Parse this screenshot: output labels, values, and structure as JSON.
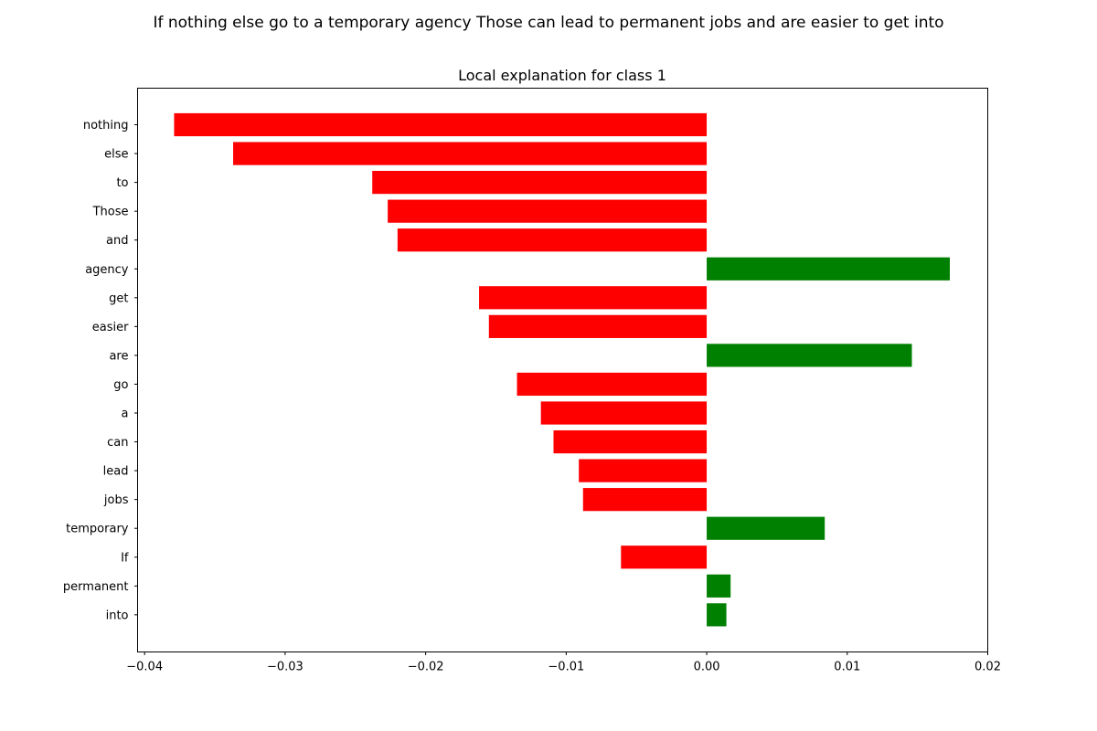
{
  "suptitle": "If nothing else go to a temporary agency Those can lead to permanent jobs and are easier to get into",
  "chart_data": {
    "type": "bar",
    "orientation": "horizontal",
    "title": "Local explanation for class 1",
    "xlabel": "",
    "ylabel": "",
    "xlim": [
      -0.0405,
      0.02
    ],
    "xticks": [
      -0.04,
      -0.03,
      -0.02,
      -0.01,
      0.0,
      0.01,
      0.02
    ],
    "xtick_labels": [
      "−0.04",
      "−0.03",
      "−0.02",
      "−0.01",
      "0.00",
      "0.01",
      "0.02"
    ],
    "grid": false,
    "colors": {
      "positive": "#008000",
      "negative": "#ff0000"
    },
    "categories": [
      "nothing",
      "else",
      "to",
      "Those",
      "and",
      "agency",
      "get",
      "easier",
      "are",
      "go",
      "a",
      "can",
      "lead",
      "jobs",
      "temporary",
      "If",
      "permanent",
      "into"
    ],
    "values": [
      -0.0379,
      -0.0337,
      -0.0238,
      -0.0227,
      -0.022,
      0.0173,
      -0.0162,
      -0.0155,
      0.0146,
      -0.0135,
      -0.0118,
      -0.0109,
      -0.0091,
      -0.0088,
      0.0084,
      -0.0061,
      0.0017,
      0.0014
    ]
  }
}
